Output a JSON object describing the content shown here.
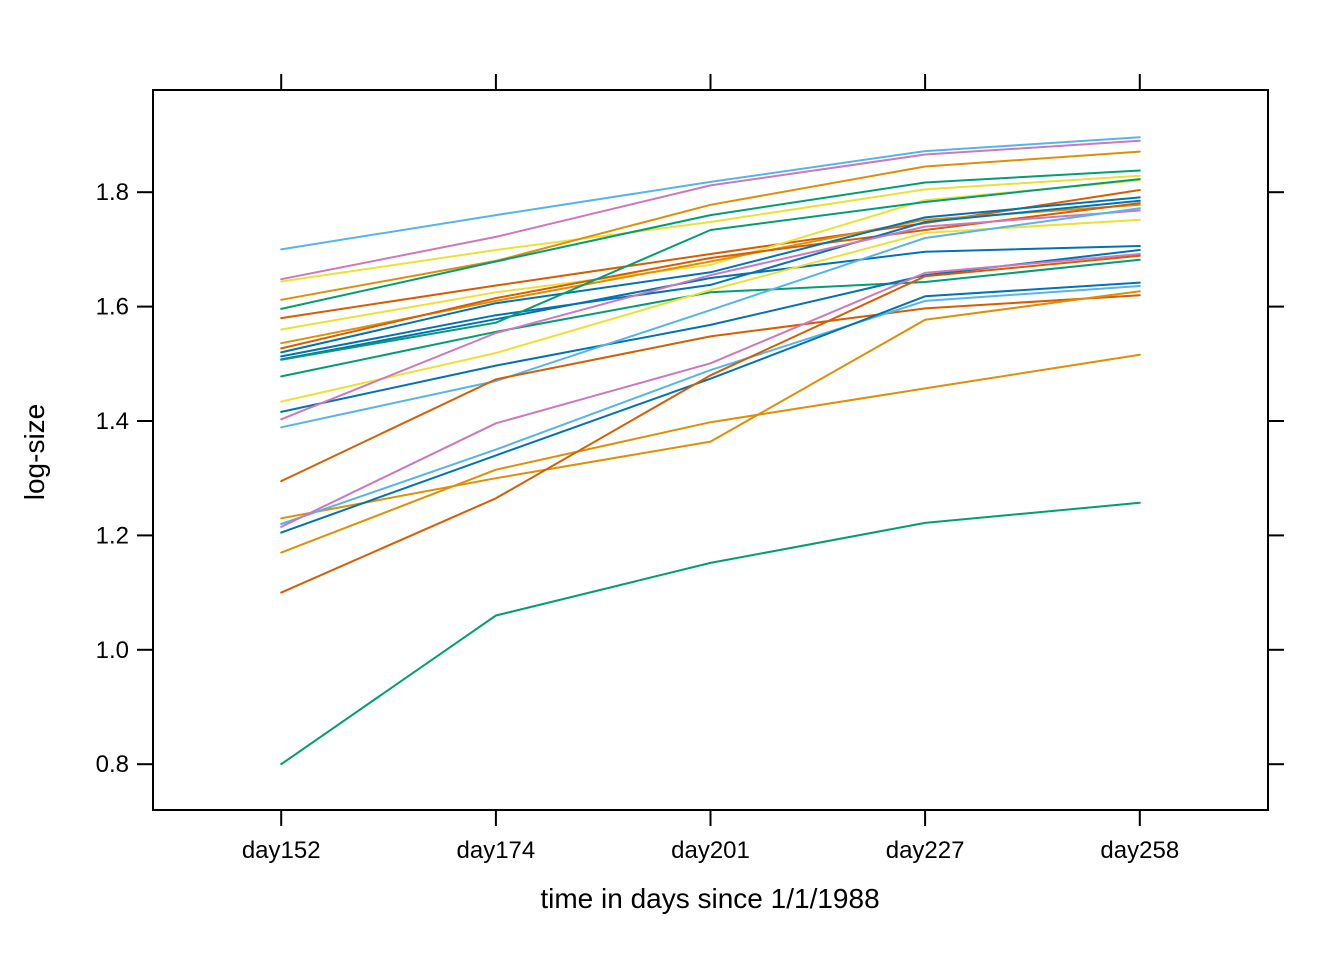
{
  "chart_data": {
    "type": "line",
    "title": "",
    "xlabel": "time in days since 1/1/1988",
    "ylabel": "log-size",
    "categories": [
      "day152",
      "day174",
      "day201",
      "day227",
      "day258"
    ],
    "y_ticks": [
      "0.8",
      "1.0",
      "1.2",
      "1.4",
      "1.6",
      "1.8"
    ],
    "y_tick_values": [
      0.8,
      1.0,
      1.2,
      1.4,
      1.6,
      1.8
    ],
    "ylim": [
      0.72,
      1.98
    ],
    "grid": false,
    "legend": "none",
    "frame": "box-with-outward-ticks-all-sides",
    "axis_color": "#000000",
    "background_color": "#ffffff",
    "palette": {
      "blue": "#0173B2",
      "orange": "#DE8F05",
      "green": "#029E73",
      "vermilion": "#D55E00",
      "pink": "#CC78BC",
      "yellow": "#ECE133",
      "skyblue": "#56B4E9"
    },
    "series": [
      {
        "color": "skyblue",
        "values": [
          1.7,
          1.76,
          1.818,
          1.872,
          1.896
        ]
      },
      {
        "color": "pink",
        "values": [
          1.648,
          1.722,
          1.812,
          1.866,
          1.89
        ]
      },
      {
        "color": "yellow",
        "values": [
          1.644,
          1.699,
          1.748,
          1.805,
          1.829
        ]
      },
      {
        "color": "orange",
        "values": [
          1.612,
          1.68,
          1.778,
          1.845,
          1.871
        ]
      },
      {
        "color": "green",
        "values": [
          1.596,
          1.679,
          1.76,
          1.817,
          1.838
        ]
      },
      {
        "color": "vermilion",
        "values": [
          1.58,
          1.637,
          1.692,
          1.746,
          1.804
        ]
      },
      {
        "color": "yellow",
        "values": [
          1.56,
          1.625,
          1.673,
          1.786,
          1.821
        ]
      },
      {
        "color": "orange",
        "values": [
          1.536,
          1.61,
          1.679,
          1.752,
          1.778
        ]
      },
      {
        "color": "vermilion",
        "values": [
          1.527,
          1.615,
          1.685,
          1.734,
          1.781
        ]
      },
      {
        "color": "blue",
        "values": [
          1.52,
          1.606,
          1.66,
          1.756,
          1.791
        ]
      },
      {
        "color": "blue",
        "values": [
          1.513,
          1.585,
          1.638,
          1.748,
          1.785
        ]
      },
      {
        "color": "blue",
        "values": [
          1.508,
          1.578,
          1.65,
          1.696,
          1.706
        ]
      },
      {
        "color": "green",
        "values": [
          1.507,
          1.572,
          1.734,
          1.783,
          1.823
        ]
      },
      {
        "color": "green",
        "values": [
          1.478,
          1.556,
          1.625,
          1.643,
          1.682
        ]
      },
      {
        "color": "yellow",
        "values": [
          1.434,
          1.519,
          1.629,
          1.729,
          1.752
        ]
      },
      {
        "color": "blue",
        "values": [
          1.416,
          1.497,
          1.568,
          1.655,
          1.699
        ]
      },
      {
        "color": "pink",
        "values": [
          1.403,
          1.554,
          1.655,
          1.74,
          1.768
        ]
      },
      {
        "color": "skyblue",
        "values": [
          1.389,
          1.47,
          1.594,
          1.72,
          1.772
        ]
      },
      {
        "color": "vermilion",
        "values": [
          1.295,
          1.473,
          1.548,
          1.597,
          1.62
        ]
      },
      {
        "color": "orange",
        "values": [
          1.23,
          1.3,
          1.364,
          1.577,
          1.627
        ]
      },
      {
        "color": "skyblue",
        "values": [
          1.22,
          1.35,
          1.489,
          1.61,
          1.636
        ]
      },
      {
        "color": "pink",
        "values": [
          1.215,
          1.396,
          1.501,
          1.659,
          1.692
        ]
      },
      {
        "color": "blue",
        "values": [
          1.205,
          1.34,
          1.474,
          1.618,
          1.642
        ]
      },
      {
        "color": "orange",
        "values": [
          1.17,
          1.315,
          1.398,
          1.457,
          1.516
        ]
      },
      {
        "color": "vermilion",
        "values": [
          1.1,
          1.265,
          1.48,
          1.653,
          1.689
        ]
      },
      {
        "color": "green",
        "values": [
          0.8,
          1.06,
          1.152,
          1.222,
          1.257
        ]
      }
    ]
  }
}
